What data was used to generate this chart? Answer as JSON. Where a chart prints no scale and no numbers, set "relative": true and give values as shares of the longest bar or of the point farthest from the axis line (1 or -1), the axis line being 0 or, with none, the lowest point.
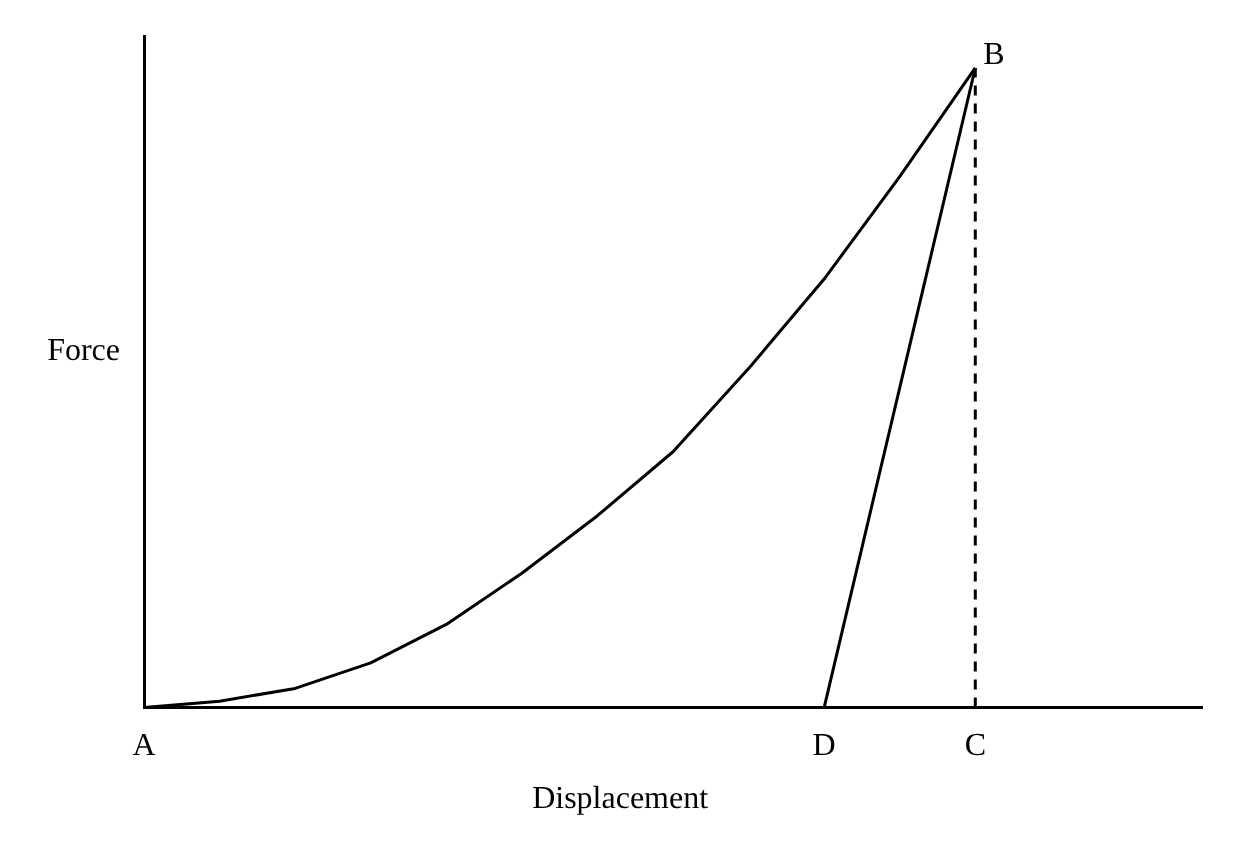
{
  "chart_data": {
    "type": "line",
    "relative": true,
    "xlabel": "Displacement",
    "ylabel": "Force",
    "tick_labels": "x",
    "grid": false,
    "legend": false,
    "marker": "none",
    "categories": [
      "A",
      null,
      null,
      null,
      null,
      null,
      null,
      null,
      null,
      "D",
      null,
      "C",
      null,
      null,
      null
    ],
    "series": [
      {
        "color": "#000000",
        "line_style": "solid",
        "values": [
          0,
          0.01,
          0.03,
          0.07,
          0.13,
          0.21,
          0.3,
          0.4,
          0.53,
          0.67,
          0.83,
          1,
          null,
          null,
          null
        ]
      },
      {
        "color": "#000000",
        "line_style": "solid",
        "values": [
          null,
          null,
          null,
          null,
          null,
          null,
          null,
          null,
          null,
          0,
          null,
          1,
          null,
          null,
          null
        ]
      }
    ],
    "ref_lines": [
      {
        "axis": "x",
        "value": "C",
        "color": "#000000",
        "line_style": "dashed"
      }
    ],
    "annotations": [
      {
        "text": "B",
        "x": "C",
        "y": 1
      }
    ]
  }
}
